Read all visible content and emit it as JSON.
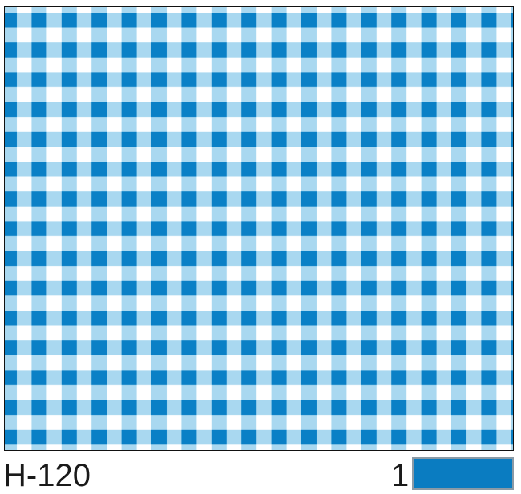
{
  "swatch": {
    "pattern": "gingham-check",
    "colors": {
      "dark": "#0a80c6",
      "light": "#a9d8f0",
      "background": "#ffffff"
    }
  },
  "label": {
    "code": "H-120"
  },
  "color_key": [
    {
      "number": "1",
      "color": "#0a7cc1"
    }
  ]
}
